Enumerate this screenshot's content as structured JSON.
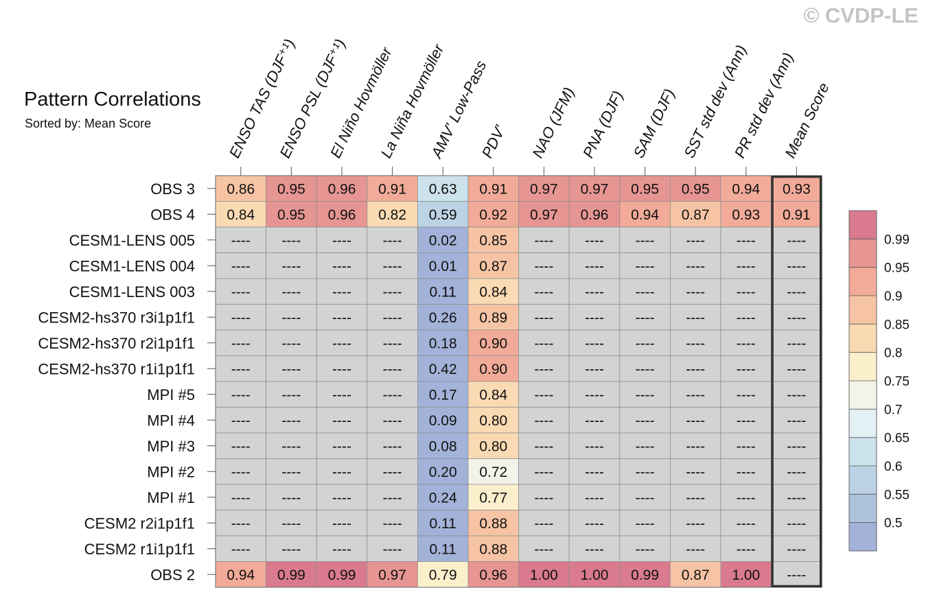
{
  "watermark": "© CVDP-LE",
  "chart_data": {
    "type": "heatmap",
    "title": "Pattern Correlations",
    "subtitle": "Sorted by: Mean Score",
    "columns": [
      "ENSO TAS (DJF⁺¹)",
      "ENSO PSL (DJF⁺¹)",
      "El Niño Hovmöller",
      "La Niña Hovmöller",
      "AMV' Low-Pass",
      "PDV'",
      "NAO (JFM)",
      "PNA (DJF)",
      "SAM (DJF)",
      "SST std dev (Ann)",
      "PR std dev (Ann)",
      "Mean Score"
    ],
    "rows": [
      "OBS 3",
      "OBS 4",
      "CESM1-LENS 005",
      "CESM1-LENS 004",
      "CESM1-LENS 003",
      "CESM2-hs370 r3i1p1f1",
      "CESM2-hs370 r2i1p1f1",
      "CESM2-hs370 r1i1p1f1",
      "MPI #5",
      "MPI #4",
      "MPI #3",
      "MPI #2",
      "MPI #1",
      "CESM2 r2i1p1f1",
      "CESM2 r1i1p1f1",
      "OBS 2"
    ],
    "missing_label": "----",
    "values": [
      [
        0.86,
        0.95,
        0.96,
        0.91,
        0.63,
        0.91,
        0.97,
        0.97,
        0.95,
        0.95,
        0.94,
        0.93
      ],
      [
        0.84,
        0.95,
        0.96,
        0.82,
        0.59,
        0.92,
        0.97,
        0.96,
        0.94,
        0.87,
        0.93,
        0.91
      ],
      [
        null,
        null,
        null,
        null,
        0.02,
        0.85,
        null,
        null,
        null,
        null,
        null,
        null
      ],
      [
        null,
        null,
        null,
        null,
        0.01,
        0.87,
        null,
        null,
        null,
        null,
        null,
        null
      ],
      [
        null,
        null,
        null,
        null,
        0.11,
        0.84,
        null,
        null,
        null,
        null,
        null,
        null
      ],
      [
        null,
        null,
        null,
        null,
        0.26,
        0.89,
        null,
        null,
        null,
        null,
        null,
        null
      ],
      [
        null,
        null,
        null,
        null,
        0.18,
        0.9,
        null,
        null,
        null,
        null,
        null,
        null
      ],
      [
        null,
        null,
        null,
        null,
        0.42,
        0.9,
        null,
        null,
        null,
        null,
        null,
        null
      ],
      [
        null,
        null,
        null,
        null,
        0.17,
        0.84,
        null,
        null,
        null,
        null,
        null,
        null
      ],
      [
        null,
        null,
        null,
        null,
        0.09,
        0.8,
        null,
        null,
        null,
        null,
        null,
        null
      ],
      [
        null,
        null,
        null,
        null,
        0.08,
        0.8,
        null,
        null,
        null,
        null,
        null,
        null
      ],
      [
        null,
        null,
        null,
        null,
        0.2,
        0.72,
        null,
        null,
        null,
        null,
        null,
        null
      ],
      [
        null,
        null,
        null,
        null,
        0.24,
        0.77,
        null,
        null,
        null,
        null,
        null,
        null
      ],
      [
        null,
        null,
        null,
        null,
        0.11,
        0.88,
        null,
        null,
        null,
        null,
        null,
        null
      ],
      [
        null,
        null,
        null,
        null,
        0.11,
        0.88,
        null,
        null,
        null,
        null,
        null,
        null
      ],
      [
        0.94,
        0.99,
        0.99,
        0.97,
        0.79,
        0.96,
        1.0,
        1.0,
        0.99,
        0.87,
        1.0,
        null
      ]
    ],
    "highlight_column": "Mean Score",
    "missing_color": "#d3d3d3",
    "colorbar": {
      "levels": [
        0.5,
        0.55,
        0.6,
        0.65,
        0.7,
        0.75,
        0.8,
        0.85,
        0.9,
        0.95,
        0.99
      ],
      "tick_labels": [
        "0.5",
        "0.55",
        "0.6",
        "0.65",
        "0.7",
        "0.75",
        "0.8",
        "0.85",
        "0.9",
        "0.95",
        "0.99"
      ],
      "colors": [
        "#a2b2d8",
        "#afc2dd",
        "#bcd3e5",
        "#cce2ec",
        "#e3f0f4",
        "#f3f3ea",
        "#fbefcc",
        "#f9dab3",
        "#f6c4a4",
        "#f1ab98",
        "#e69592",
        "#d97a8e"
      ]
    }
  }
}
